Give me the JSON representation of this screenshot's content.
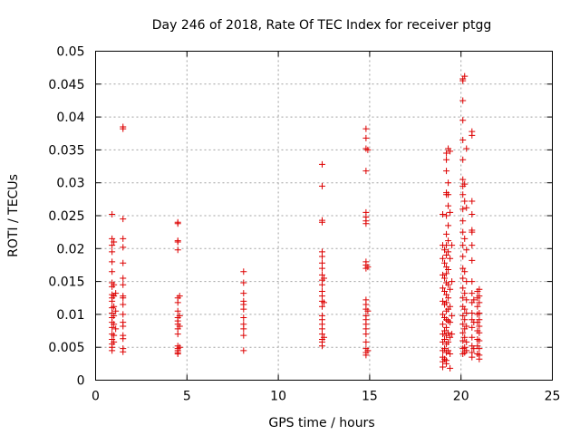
{
  "chart_data": {
    "type": "scatter",
    "title": "Day 246 of 2018, Rate Of TEC Index for receiver ptgg",
    "xlabel": "GPS time / hours",
    "ylabel": "ROTI / TECUs",
    "xlim": [
      0,
      25
    ],
    "ylim": [
      0,
      0.05
    ],
    "xticks": [
      "0",
      "5",
      "10",
      "15",
      "20",
      "25"
    ],
    "yticks": [
      "0",
      "0.005",
      "0.01",
      "0.015",
      "0.02",
      "0.025",
      "0.03",
      "0.035",
      "0.04",
      "0.045",
      "0.05"
    ],
    "grid": true,
    "marker": "+",
    "color": "#dd0000",
    "series": [
      {
        "name": "ROTI",
        "points": [
          [
            0.9,
            0.0252
          ],
          [
            0.9,
            0.0215
          ],
          [
            0.9,
            0.0205
          ],
          [
            0.9,
            0.0195
          ],
          [
            0.9,
            0.018
          ],
          [
            0.9,
            0.0165
          ],
          [
            0.9,
            0.0148
          ],
          [
            0.9,
            0.0142
          ],
          [
            0.9,
            0.013
          ],
          [
            0.9,
            0.0125
          ],
          [
            0.9,
            0.012
          ],
          [
            0.9,
            0.011
          ],
          [
            0.9,
            0.0102
          ],
          [
            0.9,
            0.0095
          ],
          [
            0.9,
            0.0088
          ],
          [
            0.9,
            0.008
          ],
          [
            0.9,
            0.007
          ],
          [
            0.9,
            0.0062
          ],
          [
            0.9,
            0.0055
          ],
          [
            0.9,
            0.005
          ],
          [
            0.9,
            0.0045
          ],
          [
            1.0,
            0.021
          ],
          [
            1.0,
            0.0145
          ],
          [
            1.0,
            0.0128
          ],
          [
            1.0,
            0.0112
          ],
          [
            1.0,
            0.0098
          ],
          [
            1.0,
            0.0085
          ],
          [
            1.0,
            0.0068
          ],
          [
            1.0,
            0.0058
          ],
          [
            1.1,
            0.0132
          ],
          [
            1.1,
            0.0105
          ],
          [
            1.1,
            0.0078
          ],
          [
            1.5,
            0.0385
          ],
          [
            1.5,
            0.0382
          ],
          [
            1.5,
            0.0245
          ],
          [
            1.5,
            0.0215
          ],
          [
            1.5,
            0.0202
          ],
          [
            1.5,
            0.0178
          ],
          [
            1.5,
            0.0155
          ],
          [
            1.5,
            0.0145
          ],
          [
            1.5,
            0.0128
          ],
          [
            1.5,
            0.0125
          ],
          [
            1.5,
            0.0115
          ],
          [
            1.5,
            0.01
          ],
          [
            1.5,
            0.0088
          ],
          [
            1.5,
            0.0082
          ],
          [
            1.5,
            0.0068
          ],
          [
            1.5,
            0.0063
          ],
          [
            1.5,
            0.0048
          ],
          [
            1.5,
            0.0043
          ],
          [
            4.5,
            0.024
          ],
          [
            4.5,
            0.0238
          ],
          [
            4.5,
            0.0212
          ],
          [
            4.5,
            0.021
          ],
          [
            4.5,
            0.0198
          ],
          [
            4.5,
            0.0125
          ],
          [
            4.5,
            0.0118
          ],
          [
            4.5,
            0.0105
          ],
          [
            4.5,
            0.0095
          ],
          [
            4.5,
            0.009
          ],
          [
            4.5,
            0.0085
          ],
          [
            4.5,
            0.0078
          ],
          [
            4.5,
            0.007
          ],
          [
            4.5,
            0.0052
          ],
          [
            4.5,
            0.0048
          ],
          [
            4.5,
            0.0045
          ],
          [
            4.5,
            0.0042
          ],
          [
            4.5,
            0.004
          ],
          [
            4.6,
            0.0128
          ],
          [
            4.6,
            0.0098
          ],
          [
            4.6,
            0.0082
          ],
          [
            4.6,
            0.005
          ],
          [
            8.1,
            0.0165
          ],
          [
            8.1,
            0.0148
          ],
          [
            8.1,
            0.0132
          ],
          [
            8.1,
            0.012
          ],
          [
            8.1,
            0.0115
          ],
          [
            8.1,
            0.0108
          ],
          [
            8.1,
            0.0095
          ],
          [
            8.1,
            0.0085
          ],
          [
            8.1,
            0.0078
          ],
          [
            8.1,
            0.0068
          ],
          [
            8.1,
            0.0045
          ],
          [
            12.4,
            0.0328
          ],
          [
            12.4,
            0.0295
          ],
          [
            12.4,
            0.0243
          ],
          [
            12.4,
            0.024
          ],
          [
            12.4,
            0.0195
          ],
          [
            12.4,
            0.0188
          ],
          [
            12.4,
            0.0178
          ],
          [
            12.4,
            0.017
          ],
          [
            12.4,
            0.016
          ],
          [
            12.4,
            0.0152
          ],
          [
            12.4,
            0.0145
          ],
          [
            12.4,
            0.0135
          ],
          [
            12.4,
            0.0128
          ],
          [
            12.4,
            0.012
          ],
          [
            12.4,
            0.0112
          ],
          [
            12.4,
            0.0098
          ],
          [
            12.4,
            0.0092
          ],
          [
            12.4,
            0.0085
          ],
          [
            12.4,
            0.0078
          ],
          [
            12.4,
            0.007
          ],
          [
            12.4,
            0.0062
          ],
          [
            12.4,
            0.0058
          ],
          [
            12.4,
            0.0052
          ],
          [
            12.5,
            0.0155
          ],
          [
            12.5,
            0.0118
          ],
          [
            12.5,
            0.0065
          ],
          [
            14.8,
            0.0382
          ],
          [
            14.8,
            0.0368
          ],
          [
            14.8,
            0.0352
          ],
          [
            14.8,
            0.0318
          ],
          [
            14.8,
            0.0255
          ],
          [
            14.8,
            0.0248
          ],
          [
            14.8,
            0.0242
          ],
          [
            14.8,
            0.0238
          ],
          [
            14.8,
            0.018
          ],
          [
            14.8,
            0.0175
          ],
          [
            14.8,
            0.017
          ],
          [
            14.8,
            0.0122
          ],
          [
            14.8,
            0.0115
          ],
          [
            14.8,
            0.0108
          ],
          [
            14.8,
            0.0098
          ],
          [
            14.8,
            0.0092
          ],
          [
            14.8,
            0.0085
          ],
          [
            14.8,
            0.0078
          ],
          [
            14.8,
            0.007
          ],
          [
            14.8,
            0.0058
          ],
          [
            14.8,
            0.0048
          ],
          [
            14.8,
            0.0042
          ],
          [
            14.8,
            0.0038
          ],
          [
            14.9,
            0.035
          ],
          [
            14.9,
            0.0172
          ],
          [
            14.9,
            0.0105
          ],
          [
            14.9,
            0.0045
          ],
          [
            19.0,
            0.0252
          ],
          [
            19.0,
            0.0205
          ],
          [
            19.0,
            0.0185
          ],
          [
            19.0,
            0.016
          ],
          [
            19.0,
            0.014
          ],
          [
            19.0,
            0.012
          ],
          [
            19.0,
            0.01
          ],
          [
            19.0,
            0.0085
          ],
          [
            19.0,
            0.007
          ],
          [
            19.0,
            0.0058
          ],
          [
            19.0,
            0.0045
          ],
          [
            19.0,
            0.0035
          ],
          [
            19.0,
            0.0028
          ],
          [
            19.0,
            0.002
          ],
          [
            19.1,
            0.0198
          ],
          [
            19.1,
            0.0178
          ],
          [
            19.1,
            0.0155
          ],
          [
            19.1,
            0.0135
          ],
          [
            19.1,
            0.0115
          ],
          [
            19.1,
            0.0095
          ],
          [
            19.1,
            0.0075
          ],
          [
            19.1,
            0.0062
          ],
          [
            19.1,
            0.0048
          ],
          [
            19.1,
            0.0032
          ],
          [
            19.2,
            0.0345
          ],
          [
            19.2,
            0.0335
          ],
          [
            19.2,
            0.0318
          ],
          [
            19.2,
            0.0285
          ],
          [
            19.2,
            0.0282
          ],
          [
            19.2,
            0.025
          ],
          [
            19.2,
            0.0222
          ],
          [
            19.2,
            0.0205
          ],
          [
            19.2,
            0.019
          ],
          [
            19.2,
            0.0172
          ],
          [
            19.2,
            0.0162
          ],
          [
            19.2,
            0.0148
          ],
          [
            19.2,
            0.013
          ],
          [
            19.2,
            0.0118
          ],
          [
            19.2,
            0.0105
          ],
          [
            19.2,
            0.0092
          ],
          [
            19.2,
            0.008
          ],
          [
            19.2,
            0.0068
          ],
          [
            19.2,
            0.0055
          ],
          [
            19.2,
            0.0042
          ],
          [
            19.2,
            0.003
          ],
          [
            19.2,
            0.0025
          ],
          [
            19.3,
            0.0352
          ],
          [
            19.3,
            0.03
          ],
          [
            19.3,
            0.0282
          ],
          [
            19.3,
            0.0265
          ],
          [
            19.3,
            0.0235
          ],
          [
            19.3,
            0.0212
          ],
          [
            19.3,
            0.0195
          ],
          [
            19.3,
            0.0168
          ],
          [
            19.3,
            0.0145
          ],
          [
            19.3,
            0.0125
          ],
          [
            19.3,
            0.0108
          ],
          [
            19.3,
            0.009
          ],
          [
            19.3,
            0.0072
          ],
          [
            19.3,
            0.0058
          ],
          [
            19.3,
            0.0045
          ],
          [
            19.4,
            0.0348
          ],
          [
            19.4,
            0.0255
          ],
          [
            19.4,
            0.0185
          ],
          [
            19.4,
            0.0138
          ],
          [
            19.4,
            0.0112
          ],
          [
            19.4,
            0.0088
          ],
          [
            19.4,
            0.0065
          ],
          [
            19.4,
            0.004
          ],
          [
            19.4,
            0.0018
          ],
          [
            19.5,
            0.0205
          ],
          [
            19.5,
            0.015
          ],
          [
            19.5,
            0.0098
          ],
          [
            19.5,
            0.007
          ],
          [
            20.1,
            0.0458
          ],
          [
            20.1,
            0.0455
          ],
          [
            20.1,
            0.0425
          ],
          [
            20.1,
            0.0395
          ],
          [
            20.1,
            0.0365
          ],
          [
            20.1,
            0.0335
          ],
          [
            20.1,
            0.0305
          ],
          [
            20.1,
            0.0295
          ],
          [
            20.1,
            0.0282
          ],
          [
            20.1,
            0.026
          ],
          [
            20.1,
            0.0242
          ],
          [
            20.1,
            0.0225
          ],
          [
            20.1,
            0.0205
          ],
          [
            20.1,
            0.0188
          ],
          [
            20.1,
            0.017
          ],
          [
            20.1,
            0.0155
          ],
          [
            20.1,
            0.014
          ],
          [
            20.1,
            0.0125
          ],
          [
            20.1,
            0.0112
          ],
          [
            20.1,
            0.0098
          ],
          [
            20.1,
            0.0085
          ],
          [
            20.1,
            0.0072
          ],
          [
            20.1,
            0.006
          ],
          [
            20.1,
            0.0048
          ],
          [
            20.1,
            0.004
          ],
          [
            20.2,
            0.0462
          ],
          [
            20.2,
            0.0298
          ],
          [
            20.2,
            0.0272
          ],
          [
            20.2,
            0.0215
          ],
          [
            20.2,
            0.0165
          ],
          [
            20.2,
            0.0132
          ],
          [
            20.2,
            0.0108
          ],
          [
            20.2,
            0.0092
          ],
          [
            20.2,
            0.0078
          ],
          [
            20.2,
            0.0065
          ],
          [
            20.2,
            0.005
          ],
          [
            20.2,
            0.0042
          ],
          [
            20.3,
            0.0352
          ],
          [
            20.3,
            0.0262
          ],
          [
            20.3,
            0.0198
          ],
          [
            20.3,
            0.015
          ],
          [
            20.3,
            0.0122
          ],
          [
            20.3,
            0.0102
          ],
          [
            20.3,
            0.0082
          ],
          [
            20.3,
            0.0058
          ],
          [
            20.3,
            0.0045
          ],
          [
            20.6,
            0.0378
          ],
          [
            20.6,
            0.0372
          ],
          [
            20.6,
            0.0272
          ],
          [
            20.6,
            0.0252
          ],
          [
            20.6,
            0.0228
          ],
          [
            20.6,
            0.0225
          ],
          [
            20.6,
            0.0205
          ],
          [
            20.6,
            0.0182
          ],
          [
            20.6,
            0.015
          ],
          [
            20.6,
            0.0132
          ],
          [
            20.6,
            0.0118
          ],
          [
            20.6,
            0.0102
          ],
          [
            20.6,
            0.0092
          ],
          [
            20.6,
            0.008
          ],
          [
            20.6,
            0.0065
          ],
          [
            20.6,
            0.0052
          ],
          [
            20.6,
            0.0042
          ],
          [
            20.6,
            0.0035
          ],
          [
            20.7,
            0.0122
          ],
          [
            20.7,
            0.0088
          ],
          [
            20.7,
            0.0048
          ],
          [
            20.9,
            0.0135
          ],
          [
            20.9,
            0.0125
          ],
          [
            20.9,
            0.0112
          ],
          [
            20.9,
            0.01
          ],
          [
            20.9,
            0.0088
          ],
          [
            20.9,
            0.0075
          ],
          [
            20.9,
            0.0062
          ],
          [
            20.9,
            0.0052
          ],
          [
            20.9,
            0.004
          ],
          [
            21.0,
            0.0138
          ],
          [
            21.0,
            0.0128
          ],
          [
            21.0,
            0.0118
          ],
          [
            21.0,
            0.0102
          ],
          [
            21.0,
            0.0092
          ],
          [
            21.0,
            0.0082
          ],
          [
            21.0,
            0.0072
          ],
          [
            21.0,
            0.006
          ],
          [
            21.0,
            0.0048
          ],
          [
            21.0,
            0.0038
          ],
          [
            21.0,
            0.0032
          ]
        ]
      }
    ]
  }
}
